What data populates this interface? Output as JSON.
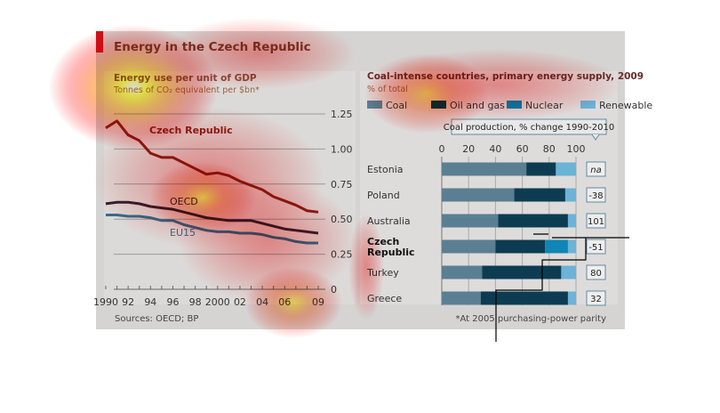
{
  "header": {
    "title": "Energy in the Czech Republic"
  },
  "sources": "Sources: OECD; BP",
  "footnote": "*At 2005 purchasing-power parity",
  "chart_data": [
    {
      "type": "line",
      "title": "Energy use per unit of GDP",
      "subtitle": "Tonnes of CO₂ equivalent per $bn*",
      "x": [
        1990,
        1991,
        1992,
        1993,
        1994,
        1995,
        1996,
        1997,
        1998,
        1999,
        2000,
        2001,
        2002,
        2003,
        2004,
        2005,
        2006,
        2007,
        2008,
        2009
      ],
      "x_tick_values": [
        1990,
        1992,
        1994,
        1996,
        1998,
        2000,
        2002,
        2004,
        2006,
        2009
      ],
      "x_tick_labels": [
        "1990",
        "92",
        "94",
        "96",
        "98",
        "2000",
        "02",
        "04",
        "06",
        "09"
      ],
      "y_ticks": [
        "0",
        "0.25",
        "0.50",
        "0.75",
        "1.00",
        "1.25"
      ],
      "y_tick_values": [
        0,
        0.25,
        0.5,
        0.75,
        1.0,
        1.25
      ],
      "ylim": [
        0,
        1.25
      ],
      "grid": true,
      "series": [
        {
          "name": "Czech Republic",
          "color": "#8b1a10",
          "values": [
            1.15,
            1.2,
            1.1,
            1.06,
            0.97,
            0.94,
            0.94,
            0.9,
            0.86,
            0.82,
            0.83,
            0.81,
            0.77,
            0.74,
            0.71,
            0.66,
            0.63,
            0.6,
            0.56,
            0.55
          ]
        },
        {
          "name": "OECD",
          "color": "#3a1e2e",
          "values": [
            0.61,
            0.62,
            0.62,
            0.61,
            0.59,
            0.58,
            0.57,
            0.55,
            0.53,
            0.51,
            0.5,
            0.49,
            0.49,
            0.49,
            0.47,
            0.45,
            0.43,
            0.42,
            0.41,
            0.4
          ]
        },
        {
          "name": "EU15",
          "color": "#3b6a8a",
          "values": [
            0.53,
            0.53,
            0.52,
            0.52,
            0.51,
            0.49,
            0.49,
            0.46,
            0.44,
            0.42,
            0.41,
            0.41,
            0.4,
            0.4,
            0.39,
            0.37,
            0.36,
            0.34,
            0.33,
            0.33
          ]
        }
      ]
    },
    {
      "type": "bar",
      "orientation": "horizontal-stacked",
      "title": "Coal-intense countries, primary energy supply, 2009",
      "subtitle": "% of total",
      "xlim": [
        0,
        100
      ],
      "x_ticks": [
        "0",
        "20",
        "40",
        "60",
        "80",
        "100"
      ],
      "x_tick_values": [
        0,
        20,
        40,
        60,
        80,
        100
      ],
      "legend": [
        {
          "name": "Coal",
          "color": "#5b7f92"
        },
        {
          "name": "Oil and gas",
          "color": "#0d3c52"
        },
        {
          "name": "Nuclear",
          "color": "#0f86b5"
        },
        {
          "name": "Renewable",
          "color": "#6cb3d6"
        }
      ],
      "legend_placement": "top",
      "categories": [
        "Estonia",
        "Poland",
        "Australia",
        "Czech Republic",
        "Turkey",
        "Greece"
      ],
      "category_labels": [
        [
          "Estonia"
        ],
        [
          "Poland"
        ],
        [
          "Australia"
        ],
        [
          "Czech",
          "Republic"
        ],
        [
          "Turkey"
        ],
        [
          "Greece"
        ]
      ],
      "highlight": "Czech Republic",
      "series": [
        {
          "name": "Coal",
          "values": [
            63,
            54,
            42,
            40,
            30,
            29
          ]
        },
        {
          "name": "Oil and gas",
          "values": [
            22,
            38,
            52,
            37,
            59,
            65
          ]
        },
        {
          "name": "Nuclear",
          "values": [
            0,
            0,
            0,
            17,
            0,
            0
          ]
        },
        {
          "name": "Renewable",
          "values": [
            15,
            8,
            6,
            6,
            11,
            6
          ]
        }
      ],
      "side_column": {
        "title": "Coal production, % change 1990-2010",
        "values": [
          "na",
          "-38",
          "101",
          "-51",
          "80",
          "32"
        ]
      }
    }
  ]
}
